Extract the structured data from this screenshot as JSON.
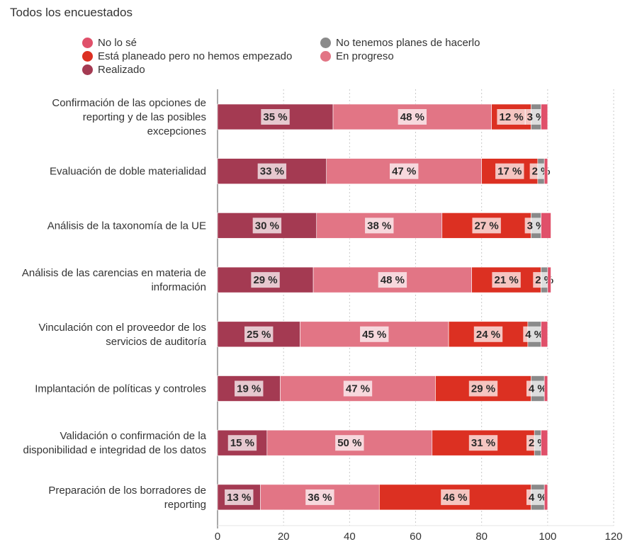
{
  "title": "Todos los encuestados",
  "legend": [
    {
      "key": "no_lo_se",
      "label": "No lo sé",
      "color": "#e0506a"
    },
    {
      "key": "no_planes",
      "label": "No tenemos planes de hacerlo",
      "color": "#8a8a8a"
    },
    {
      "key": "planeado",
      "label": "Está planeado pero no hemos empezado",
      "color": "#dc3022"
    },
    {
      "key": "en_progreso",
      "label": "En progreso",
      "color": "#e27585"
    },
    {
      "key": "realizado",
      "label": "Realizado",
      "color": "#a43a52"
    }
  ],
  "chart_data": {
    "type": "bar",
    "orientation": "horizontal",
    "stacked": true,
    "categories": [
      [
        "Confirmación de las opciones de",
        "reporting y de las posibles",
        "excepciones"
      ],
      [
        "Evaluación de doble materialidad"
      ],
      [
        "Análisis de la taxonomía de la UE"
      ],
      [
        "Análisis de las carencias en materia de",
        "información"
      ],
      [
        "Vinculación con el proveedor de los",
        "servicios de auditoría"
      ],
      [
        "Implantación de políticas y controles"
      ],
      [
        "Validación o confirmación de la",
        "disponibilidad e integridad de los datos"
      ],
      [
        "Preparación de los borradores de",
        "reporting"
      ]
    ],
    "series": [
      {
        "name": "Realizado",
        "color": "#a43a52",
        "values": [
          35,
          33,
          30,
          29,
          25,
          19,
          15,
          13
        ],
        "labels": [
          "35 %",
          "33 %",
          "30 %",
          "29 %",
          "25 %",
          "19 %",
          "15 %",
          "13 %"
        ]
      },
      {
        "name": "En progreso",
        "color": "#e27585",
        "values": [
          48,
          47,
          38,
          48,
          45,
          47,
          50,
          36
        ],
        "labels": [
          "48 %",
          "47 %",
          "38 %",
          "48 %",
          "45 %",
          "47 %",
          "50 %",
          "36 %"
        ]
      },
      {
        "name": "Está planeado pero no hemos empezado",
        "color": "#dc3022",
        "values": [
          12,
          17,
          27,
          21,
          24,
          29,
          31,
          46
        ],
        "labels": [
          "12 %",
          "17 %",
          "27 %",
          "21 %",
          "24 %",
          "29 %",
          "31 %",
          "46 %"
        ]
      },
      {
        "name": "No tenemos planes de hacerlo",
        "color": "#8a8a8a",
        "values": [
          3,
          2,
          3,
          2,
          4,
          4,
          2,
          4
        ],
        "labels": [
          "3 %",
          "2 %",
          "3 %",
          "2 %",
          "4 %",
          "4 %",
          "2 %",
          "4 %"
        ]
      },
      {
        "name": "No lo sé",
        "color": "#e0506a",
        "values": [
          2,
          1,
          3,
          1,
          2,
          1,
          2,
          1
        ],
        "labels": [
          "",
          "",
          "",
          "",
          "",
          "",
          "",
          ""
        ]
      }
    ],
    "xlim": [
      0,
      120
    ],
    "xticks": [
      0,
      20,
      40,
      60,
      80,
      100,
      120
    ],
    "grid": "vertical dotted",
    "legend_position": "top"
  }
}
